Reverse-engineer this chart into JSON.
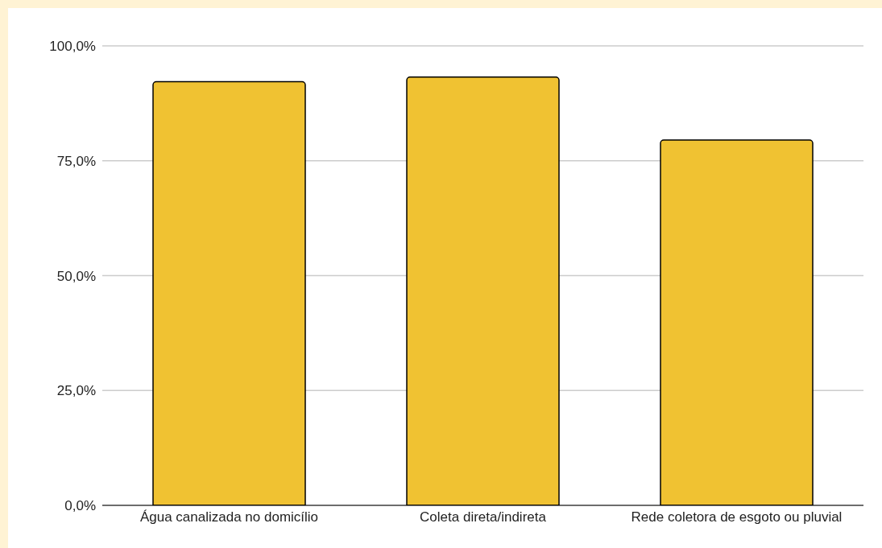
{
  "chart_data": {
    "type": "bar",
    "categories": [
      "Água canalizada no domicílio",
      "Coleta direta/indireta",
      "Rede coletora de esgoto ou pluvial"
    ],
    "values": [
      92.2,
      93.2,
      79.5
    ],
    "color": "#f0c232",
    "ylim": [
      0,
      100
    ],
    "yticks": [
      {
        "value": 0,
        "label": "0,0%"
      },
      {
        "value": 25,
        "label": "25,0%"
      },
      {
        "value": 50,
        "label": "50,0%"
      },
      {
        "value": 75,
        "label": "75,0%"
      },
      {
        "value": 100,
        "label": "100,0%"
      }
    ],
    "grid": "y"
  }
}
